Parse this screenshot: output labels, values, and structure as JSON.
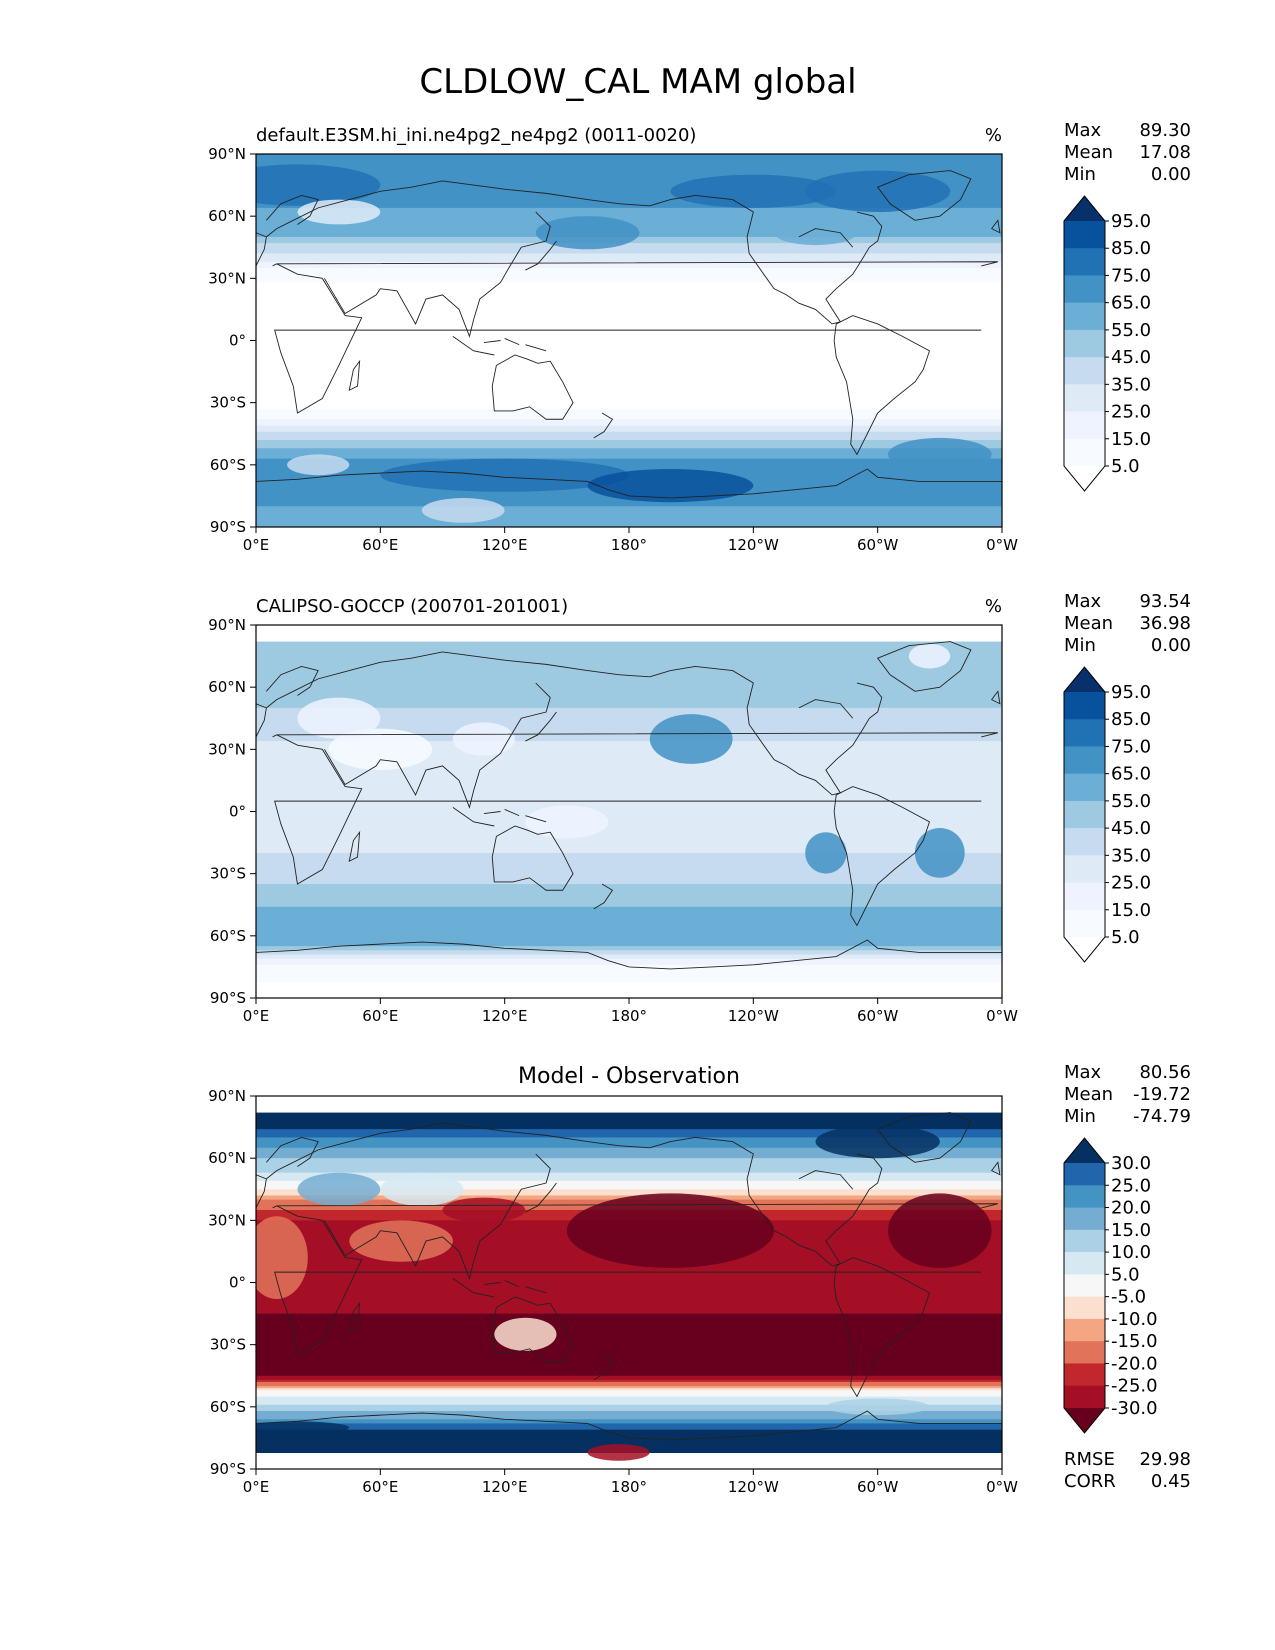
{
  "figure": {
    "title": "CLDLOW_CAL MAM global"
  },
  "axes": {
    "lat_ticks": [
      "90°N",
      "60°N",
      "30°N",
      "0°",
      "30°S",
      "60°S",
      "90°S"
    ],
    "lon_ticks": [
      "0°E",
      "60°E",
      "120°E",
      "180°",
      "120°W",
      "60°W",
      "0°W"
    ]
  },
  "chart_data": [
    {
      "type": "heatmap",
      "panel": "test",
      "title_left": "default.E3SM.hi_ini.ne4pg2_ne4pg2 (0011-0020)",
      "title_center": "",
      "units": "%",
      "stats": {
        "max_label": "Max",
        "max": "89.30",
        "mean_label": "Mean",
        "mean": "17.08",
        "min_label": "Min",
        "min": "0.00"
      },
      "colorbar": {
        "labels": [
          "95.0",
          "85.0",
          "75.0",
          "65.0",
          "55.0",
          "45.0",
          "35.0",
          "25.0",
          "15.0",
          "5.0"
        ],
        "colors": [
          "#08306b",
          "#08519c",
          "#2171b5",
          "#4292c6",
          "#6baed6",
          "#9ecae1",
          "#c6dbef",
          "#deebf7",
          "#eff3ff",
          "#f7fbff",
          "#ffffff"
        ]
      },
      "x_range": [
        0,
        360
      ],
      "y_range": [
        -90,
        90
      ],
      "zonal_profile": {
        "lat": [
          90,
          80,
          70,
          60,
          50,
          45,
          40,
          35,
          30,
          25,
          20,
          0,
          -20,
          -30,
          -35,
          -40,
          -45,
          -50,
          -55,
          -60,
          -65,
          -70,
          -75,
          -80,
          -90
        ],
        "value": [
          65,
          75,
          70,
          62,
          55,
          40,
          30,
          15,
          6,
          3,
          2,
          2,
          2,
          3,
          6,
          20,
          38,
          50,
          60,
          70,
          72,
          75,
          70,
          65,
          55
        ]
      }
    },
    {
      "type": "heatmap",
      "panel": "reference",
      "title_left": "CALIPSO-GOCCP (200701-201001)",
      "title_center": "",
      "units": "%",
      "stats": {
        "max_label": "Max",
        "max": "93.54",
        "mean_label": "Mean",
        "mean": "36.98",
        "min_label": "Min",
        "min": "0.00"
      },
      "colorbar": {
        "labels": [
          "95.0",
          "85.0",
          "75.0",
          "65.0",
          "55.0",
          "45.0",
          "35.0",
          "25.0",
          "15.0",
          "5.0"
        ],
        "colors": [
          "#08306b",
          "#08519c",
          "#2171b5",
          "#4292c6",
          "#6baed6",
          "#9ecae1",
          "#c6dbef",
          "#deebf7",
          "#eff3ff",
          "#f7fbff",
          "#ffffff"
        ]
      },
      "x_range": [
        0,
        360
      ],
      "y_range": [
        -90,
        90
      ],
      "data_lat_range": [
        -82,
        82
      ],
      "zonal_profile": {
        "lat": [
          82,
          70,
          60,
          50,
          40,
          30,
          20,
          10,
          0,
          -10,
          -20,
          -30,
          -40,
          -50,
          -55,
          -60,
          -65,
          -70,
          -75,
          -82
        ],
        "value": [
          55,
          50,
          48,
          45,
          40,
          32,
          30,
          28,
          30,
          32,
          35,
          40,
          50,
          58,
          62,
          60,
          55,
          30,
          10,
          5
        ]
      }
    },
    {
      "type": "heatmap",
      "panel": "difference",
      "title_left": "",
      "title_center": "Model - Observation",
      "units": "",
      "stats": {
        "max_label": "Max",
        "max": "80.56",
        "mean_label": "Mean",
        "mean": "-19.72",
        "min_label": "Min",
        "min": "-74.79"
      },
      "colorbar": {
        "labels": [
          "30.0",
          "25.0",
          "20.0",
          "15.0",
          "10.0",
          "5.0",
          "-5.0",
          "-10.0",
          "-15.0",
          "-20.0",
          "-25.0",
          "-30.0"
        ],
        "colors": [
          "#053061",
          "#2166ac",
          "#4393c3",
          "#74add1",
          "#abd1e6",
          "#d6e9f3",
          "#f7f7f7",
          "#fbe0d0",
          "#f4a582",
          "#e0735a",
          "#c1272d",
          "#a50f26",
          "#67001f"
        ]
      },
      "metrics": {
        "rmse_label": "RMSE",
        "rmse": "29.98",
        "corr_label": "CORR",
        "corr": "0.45"
      },
      "x_range": [
        0,
        360
      ],
      "y_range": [
        -90,
        90
      ],
      "data_lat_range": [
        -82,
        82
      ],
      "zonal_profile": {
        "lat": [
          82,
          75,
          70,
          60,
          50,
          45,
          40,
          30,
          20,
          10,
          0,
          -10,
          -20,
          -30,
          -40,
          -45,
          -50,
          -55,
          -60,
          -65,
          -70,
          -75,
          -82
        ],
        "value": [
          35,
          32,
          25,
          15,
          8,
          -5,
          -15,
          -25,
          -30,
          -28,
          -25,
          -28,
          -32,
          -38,
          -35,
          -30,
          -15,
          5,
          12,
          18,
          28,
          35,
          35
        ]
      }
    }
  ]
}
